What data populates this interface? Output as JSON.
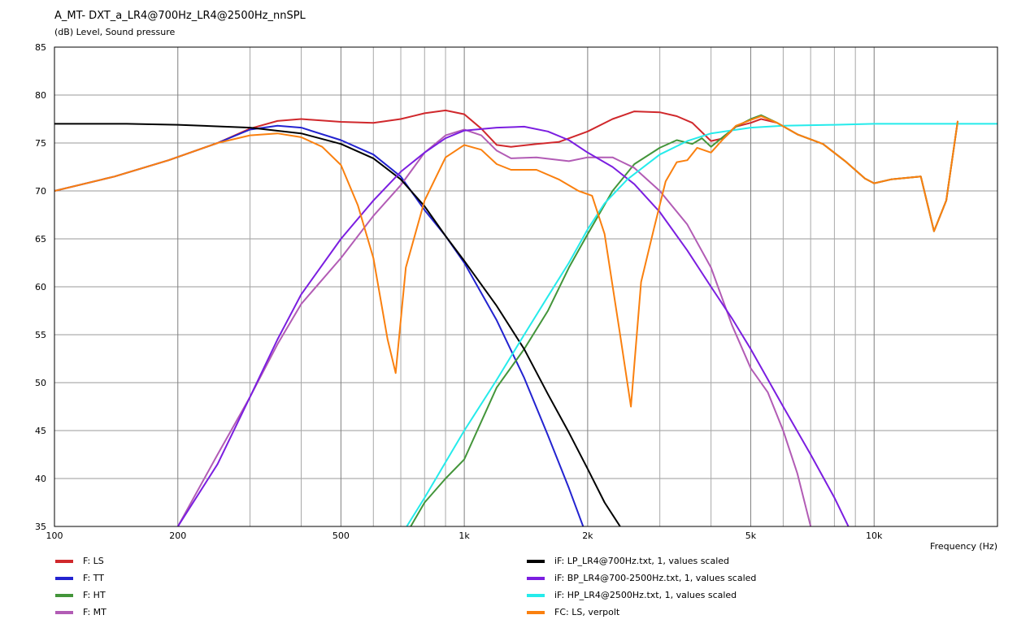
{
  "chart_data": {
    "type": "line",
    "title": "A_MT- DXT_a_LR4@700Hz_LR4@2500Hz_nnSPL",
    "ylabel": "(dB)  Level, Sound pressure",
    "xlabel": "Frequency  (Hz)",
    "x_scale": "log",
    "xlim": [
      100,
      20000
    ],
    "ylim": [
      35,
      85
    ],
    "grid": true,
    "legend_position": "bottom",
    "y_ticks": [
      35,
      40,
      45,
      50,
      55,
      60,
      65,
      70,
      75,
      80,
      85
    ],
    "y_tick_labels": [
      "35",
      "40",
      "45",
      "50",
      "55",
      "60",
      "65",
      "70",
      "75",
      "80",
      "85"
    ],
    "x_ticks": [
      100,
      200,
      500,
      1000,
      2000,
      5000,
      10000
    ],
    "x_tick_labels": [
      "100",
      "200",
      "500",
      "1k",
      "2k",
      "5k",
      "10k"
    ],
    "series": [
      {
        "name": "F: LS",
        "color": "#d0282c",
        "points": [
          [
            100,
            70
          ],
          [
            140,
            71.5
          ],
          [
            190,
            73.2
          ],
          [
            250,
            75
          ],
          [
            300,
            76.5
          ],
          [
            350,
            77.3
          ],
          [
            400,
            77.5
          ],
          [
            500,
            77.2
          ],
          [
            600,
            77.1
          ],
          [
            700,
            77.5
          ],
          [
            800,
            78.1
          ],
          [
            900,
            78.4
          ],
          [
            1000,
            78
          ],
          [
            1100,
            76.5
          ],
          [
            1200,
            74.8
          ],
          [
            1300,
            74.6
          ],
          [
            1500,
            74.9
          ],
          [
            1700,
            75.1
          ],
          [
            2000,
            76.2
          ],
          [
            2300,
            77.5
          ],
          [
            2600,
            78.3
          ],
          [
            3000,
            78.2
          ],
          [
            3300,
            77.8
          ],
          [
            3600,
            77.1
          ],
          [
            4000,
            75.2
          ],
          [
            4300,
            75.5
          ],
          [
            4600,
            76.7
          ],
          [
            5000,
            77.1
          ],
          [
            5300,
            77.5
          ],
          [
            5800,
            77.1
          ],
          [
            6500,
            75.9
          ],
          [
            7500,
            74.9
          ],
          [
            8500,
            73.1
          ],
          [
            9500,
            71.3
          ],
          [
            10000,
            70.8
          ],
          [
            11000,
            71.2
          ],
          [
            13000,
            71.5
          ],
          [
            14000,
            65.8
          ],
          [
            15000,
            69
          ],
          [
            16000,
            77.3
          ]
        ]
      },
      {
        "name": "F: TT",
        "color": "#2323d0",
        "points": [
          [
            100,
            70
          ],
          [
            140,
            71.5
          ],
          [
            190,
            73.2
          ],
          [
            250,
            75
          ],
          [
            300,
            76.4
          ],
          [
            350,
            76.8
          ],
          [
            400,
            76.6
          ],
          [
            500,
            75.3
          ],
          [
            600,
            73.8
          ],
          [
            700,
            71.5
          ],
          [
            800,
            68
          ],
          [
            900,
            65.3
          ],
          [
            1000,
            62.5
          ],
          [
            1200,
            56.5
          ],
          [
            1400,
            50.5
          ],
          [
            1600,
            44.5
          ],
          [
            1800,
            39
          ],
          [
            1950,
            35
          ]
        ]
      },
      {
        "name": "F: HT",
        "color": "#43953a",
        "points": [
          [
            740,
            35
          ],
          [
            800,
            37.5
          ],
          [
            900,
            40
          ],
          [
            1000,
            42
          ],
          [
            1200,
            49.5
          ],
          [
            1400,
            53.5
          ],
          [
            1600,
            57.5
          ],
          [
            1800,
            62
          ],
          [
            2000,
            65.5
          ],
          [
            2300,
            70
          ],
          [
            2600,
            72.8
          ],
          [
            3000,
            74.5
          ],
          [
            3300,
            75.3
          ],
          [
            3600,
            74.9
          ],
          [
            3800,
            75.5
          ],
          [
            4000,
            74.6
          ],
          [
            4300,
            75.7
          ],
          [
            4600,
            76.7
          ],
          [
            5000,
            77.5
          ],
          [
            5300,
            77.9
          ],
          [
            5800,
            77.1
          ],
          [
            6500,
            75.9
          ],
          [
            7500,
            74.9
          ],
          [
            8500,
            73.1
          ],
          [
            9500,
            71.3
          ],
          [
            10000,
            70.8
          ],
          [
            11000,
            71.2
          ],
          [
            13000,
            71.5
          ],
          [
            14000,
            65.8
          ],
          [
            15000,
            69
          ],
          [
            16000,
            77.3
          ]
        ]
      },
      {
        "name": "F: MT",
        "color": "#b25cb5",
        "points": [
          [
            200,
            35
          ],
          [
            250,
            42.5
          ],
          [
            300,
            48.5
          ],
          [
            350,
            54
          ],
          [
            400,
            58.2
          ],
          [
            500,
            63
          ],
          [
            600,
            67.4
          ],
          [
            700,
            70.6
          ],
          [
            800,
            74
          ],
          [
            900,
            75.8
          ],
          [
            1000,
            76.4
          ],
          [
            1100,
            75.8
          ],
          [
            1200,
            74.2
          ],
          [
            1300,
            73.4
          ],
          [
            1500,
            73.5
          ],
          [
            1800,
            73.1
          ],
          [
            2000,
            73.5
          ],
          [
            2300,
            73.5
          ],
          [
            2600,
            72.4
          ],
          [
            3000,
            70
          ],
          [
            3500,
            66.5
          ],
          [
            4000,
            62
          ],
          [
            4500,
            56
          ],
          [
            5000,
            51.5
          ],
          [
            5500,
            49
          ],
          [
            6000,
            45
          ],
          [
            6500,
            40.5
          ],
          [
            7000,
            35
          ]
        ]
      },
      {
        "name": "iF: LP_LR4@700Hz.txt, 1, values scaled",
        "color": "#000000",
        "points": [
          [
            100,
            77
          ],
          [
            150,
            77
          ],
          [
            200,
            76.9
          ],
          [
            300,
            76.6
          ],
          [
            400,
            76
          ],
          [
            500,
            74.9
          ],
          [
            600,
            73.4
          ],
          [
            700,
            71.2
          ],
          [
            800,
            68.4
          ],
          [
            900,
            65.3
          ],
          [
            1000,
            62.7
          ],
          [
            1200,
            58
          ],
          [
            1400,
            53.5
          ],
          [
            1600,
            48.8
          ],
          [
            1800,
            44.8
          ],
          [
            2000,
            41
          ],
          [
            2200,
            37.5
          ],
          [
            2400,
            35
          ]
        ]
      },
      {
        "name": "iF: BP_LR4@700-2500Hz.txt, 1, values scaled",
        "color": "#7b1ee0",
        "points": [
          [
            200,
            35
          ],
          [
            250,
            41.5
          ],
          [
            300,
            48.5
          ],
          [
            350,
            54.5
          ],
          [
            400,
            59.2
          ],
          [
            500,
            65
          ],
          [
            600,
            69
          ],
          [
            700,
            72
          ],
          [
            800,
            74
          ],
          [
            900,
            75.5
          ],
          [
            1000,
            76.3
          ],
          [
            1200,
            76.6
          ],
          [
            1400,
            76.7
          ],
          [
            1600,
            76.2
          ],
          [
            1800,
            75.3
          ],
          [
            2000,
            74
          ],
          [
            2300,
            72.5
          ],
          [
            2600,
            70.7
          ],
          [
            3000,
            67.8
          ],
          [
            3500,
            63.8
          ],
          [
            4000,
            60
          ],
          [
            4500,
            56.7
          ],
          [
            5000,
            53.5
          ],
          [
            6000,
            47.5
          ],
          [
            7000,
            42.5
          ],
          [
            8000,
            38
          ],
          [
            9000,
            33.5
          ]
        ]
      },
      {
        "name": "iF: HP_LR4@2500Hz.txt, 1, values scaled",
        "color": "#25ebeb",
        "points": [
          [
            700,
            34
          ],
          [
            800,
            38
          ],
          [
            900,
            41.7
          ],
          [
            1000,
            45
          ],
          [
            1200,
            50.3
          ],
          [
            1400,
            55
          ],
          [
            1600,
            59
          ],
          [
            1800,
            62.5
          ],
          [
            2000,
            66
          ],
          [
            2200,
            68.7
          ],
          [
            2500,
            71.2
          ],
          [
            3000,
            73.8
          ],
          [
            3500,
            75.2
          ],
          [
            4000,
            76
          ],
          [
            5000,
            76.6
          ],
          [
            6000,
            76.8
          ],
          [
            8000,
            76.9
          ],
          [
            10000,
            77
          ],
          [
            20000,
            77
          ]
        ]
      },
      {
        "name": "FC: LS, verpolt",
        "color": "#fa800f",
        "points": [
          [
            100,
            70
          ],
          [
            140,
            71.5
          ],
          [
            190,
            73.2
          ],
          [
            250,
            75
          ],
          [
            300,
            75.8
          ],
          [
            350,
            76
          ],
          [
            400,
            75.6
          ],
          [
            450,
            74.6
          ],
          [
            500,
            72.7
          ],
          [
            550,
            68.5
          ],
          [
            600,
            63
          ],
          [
            650,
            54.5
          ],
          [
            680,
            51
          ],
          [
            720,
            62
          ],
          [
            800,
            69
          ],
          [
            900,
            73.5
          ],
          [
            1000,
            74.8
          ],
          [
            1100,
            74.3
          ],
          [
            1200,
            72.8
          ],
          [
            1300,
            72.2
          ],
          [
            1500,
            72.2
          ],
          [
            1700,
            71.2
          ],
          [
            1900,
            70
          ],
          [
            2050,
            69.5
          ],
          [
            2200,
            65.5
          ],
          [
            2400,
            55
          ],
          [
            2550,
            47.5
          ],
          [
            2700,
            60.5
          ],
          [
            2900,
            66
          ],
          [
            3100,
            71
          ],
          [
            3300,
            73
          ],
          [
            3500,
            73.2
          ],
          [
            3700,
            74.5
          ],
          [
            4000,
            74
          ],
          [
            4300,
            75.5
          ],
          [
            4600,
            76.8
          ],
          [
            5000,
            77.4
          ],
          [
            5300,
            77.8
          ],
          [
            5800,
            77.1
          ],
          [
            6500,
            75.9
          ],
          [
            7500,
            74.9
          ],
          [
            8500,
            73.1
          ],
          [
            9500,
            71.3
          ],
          [
            10000,
            70.8
          ],
          [
            11000,
            71.2
          ],
          [
            13000,
            71.5
          ],
          [
            14000,
            65.8
          ],
          [
            15000,
            69
          ],
          [
            16000,
            77.3
          ]
        ]
      }
    ]
  }
}
